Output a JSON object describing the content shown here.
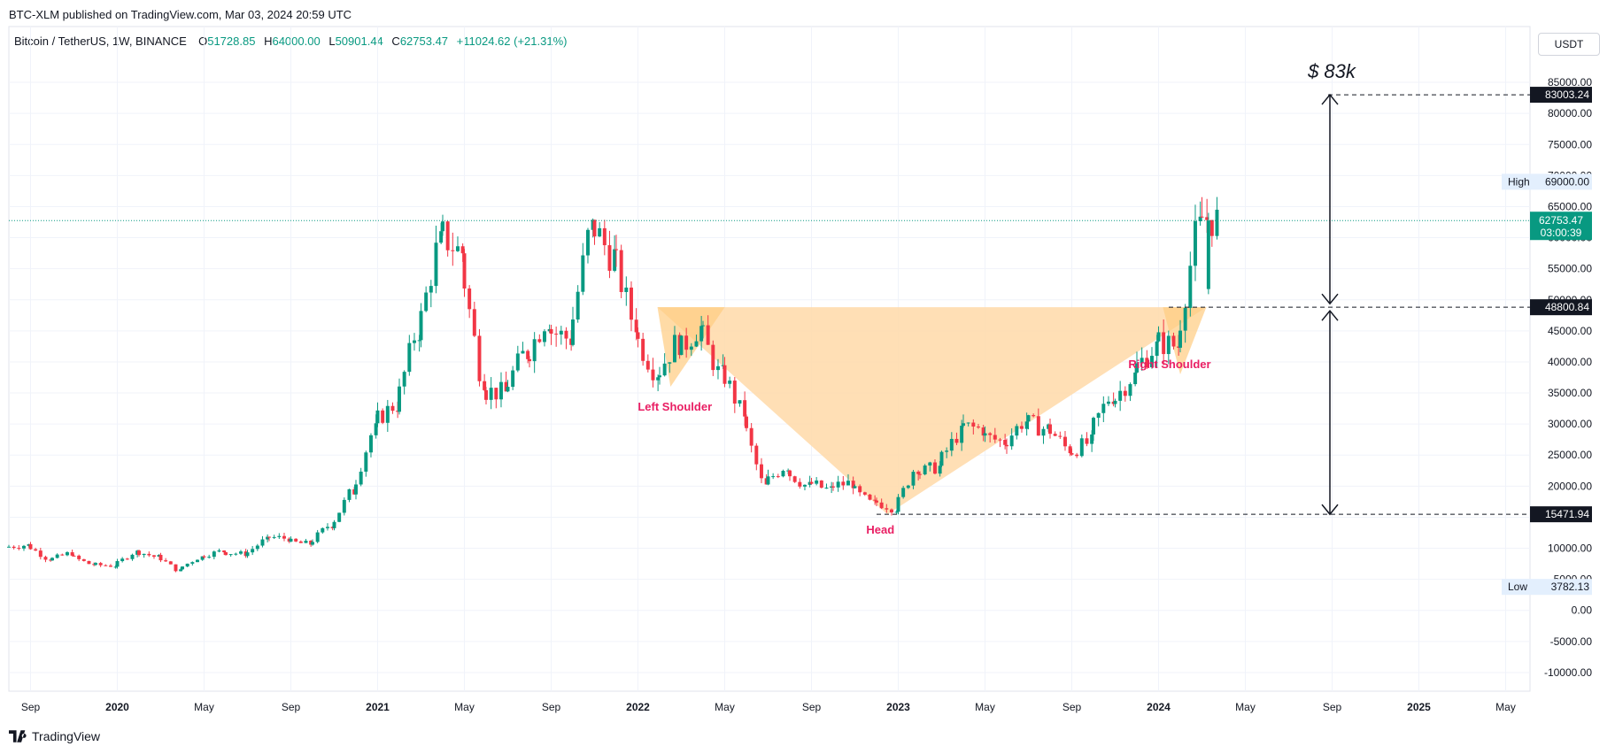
{
  "published": "BTC-XLM published on TradingView.com, Mar 03, 2024 20:59 UTC",
  "legend": {
    "symbol": "Bitcoin / TetherUS, 1W, BINANCE",
    "o_label": "O",
    "o_value": "51728.85",
    "h_label": "H",
    "h_value": "64000.00",
    "l_label": "L",
    "l_value": "50901.44",
    "c_label": "C",
    "c_value": "62753.47",
    "change": "+11024.62 (+21.31%)"
  },
  "currency": "USDT",
  "brand": "TradingView",
  "colors": {
    "up": "#089981",
    "down": "#f23645",
    "pattern_fill": "#ffd9a8",
    "pattern_label": "#e91e63"
  },
  "chart_data": {
    "type": "candlestick",
    "title": "Bitcoin / TetherUS, 1W, BINANCE",
    "ylim": [
      -13000,
      88000
    ],
    "y_ticks": [
      -10000,
      -5000,
      0,
      5000,
      10000,
      15000,
      20000,
      25000,
      30000,
      35000,
      40000,
      45000,
      50000,
      55000,
      60000,
      65000,
      70000,
      75000,
      80000,
      85000
    ],
    "y_tick_labels": [
      "-10000.00",
      "-5000.00",
      "0.00",
      "5000.00",
      "10000.00",
      "15000.00",
      "20000.00",
      "25000.00",
      "30000.00",
      "35000.00",
      "40000.00",
      "45000.00",
      "50000.00",
      "55000.00",
      "60000.00",
      "65000.00",
      "70000.00",
      "75000.00",
      "80000.00",
      "85000.00"
    ],
    "x_range_months": [
      0,
      70
    ],
    "x_ticks": [
      {
        "label": "Sep",
        "m": 1
      },
      {
        "label": "2020",
        "m": 5
      },
      {
        "label": "May",
        "m": 9
      },
      {
        "label": "Sep",
        "m": 13
      },
      {
        "label": "2021",
        "m": 17
      },
      {
        "label": "May",
        "m": 21
      },
      {
        "label": "Sep",
        "m": 25
      },
      {
        "label": "2022",
        "m": 29
      },
      {
        "label": "May",
        "m": 33
      },
      {
        "label": "Sep",
        "m": 37
      },
      {
        "label": "2023",
        "m": 41
      },
      {
        "label": "May",
        "m": 45
      },
      {
        "label": "Sep",
        "m": 49
      },
      {
        "label": "2024",
        "m": 53
      },
      {
        "label": "May",
        "m": 57
      },
      {
        "label": "Sep",
        "m": 61
      },
      {
        "label": "2025",
        "m": 65
      },
      {
        "label": "May",
        "m": 69
      }
    ],
    "closes_monthly": [
      10500,
      8300,
      9200,
      7400,
      7200,
      9400,
      8600,
      6400,
      8600,
      9500,
      9100,
      11300,
      11600,
      10700,
      13800,
      19200,
      29000,
      33100,
      45200,
      58900,
      57700,
      37300,
      35000,
      41500,
      47100,
      43800,
      61300,
      57000,
      46300,
      38500,
      43200,
      45500,
      37700,
      31800,
      19900,
      23300,
      20000,
      19400,
      20500,
      17100,
      16500,
      23100,
      23100,
      28500,
      29200,
      27200,
      30500,
      29200,
      26000,
      27000,
      34600,
      37700,
      42300,
      42600,
      61500,
      62753
    ],
    "current_price": {
      "value": 62753.47,
      "label": "62753.47",
      "countdown": "03:00:39"
    },
    "high": {
      "label": "High",
      "value": "69000.00",
      "price": 69000
    },
    "low": {
      "label": "Low",
      "value": "3782.13",
      "price": 3782.13
    },
    "levels": [
      {
        "label": "83003.24",
        "price": 83003.24
      },
      {
        "label": "48800.84",
        "price": 48800.84
      },
      {
        "label": "15471.94",
        "price": 15471.94
      }
    ],
    "target_label": "$ 83k",
    "pattern": {
      "left_shoulder": {
        "label": "Left Shoulder",
        "m": 30.5,
        "price": 36000
      },
      "head": {
        "label": "Head",
        "m": 40.5,
        "price": 15471.94
      },
      "right_shoulder": {
        "label": "Right Shoulder",
        "m": 54,
        "price": 38000
      },
      "neckline_price": 48800.84,
      "neckline_start_m": 29.9,
      "neckline_end_m": 55.2,
      "left_peak_m": 33.0
    }
  }
}
